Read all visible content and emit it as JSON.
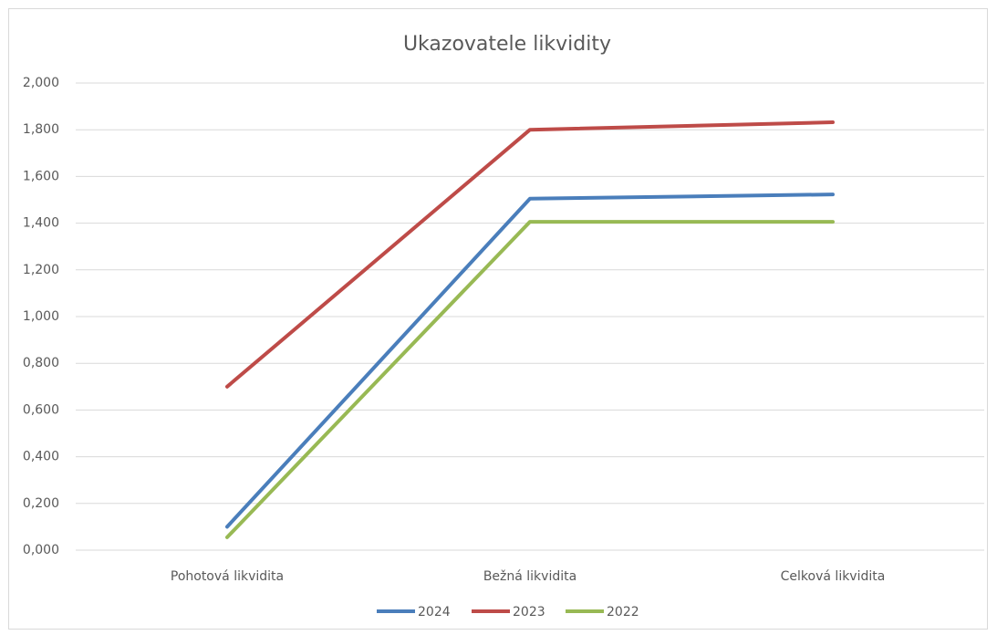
{
  "chart_data": {
    "type": "line",
    "title": "Ukazovatele likvidity",
    "categories": [
      "Pohotová likvidita",
      "Bežná likvidita",
      "Celková likvidita"
    ],
    "series": [
      {
        "name": "2024",
        "color": "#4a7ebb",
        "values": [
          0.1,
          1.505,
          1.523
        ]
      },
      {
        "name": "2023",
        "color": "#be4b48",
        "values": [
          0.7,
          1.8,
          1.832
        ]
      },
      {
        "name": "2022",
        "color": "#98b954",
        "values": [
          0.055,
          1.406,
          1.406
        ]
      }
    ],
    "ylim": [
      0,
      2
    ],
    "yticks": [
      {
        "value": 0,
        "label": "0,000"
      },
      {
        "value": 0.2,
        "label": "0,200"
      },
      {
        "value": 0.4,
        "label": "0,400"
      },
      {
        "value": 0.6,
        "label": "0,600"
      },
      {
        "value": 0.8,
        "label": "0,800"
      },
      {
        "value": 1,
        "label": "1,000"
      },
      {
        "value": 1.2,
        "label": "1,200"
      },
      {
        "value": 1.4,
        "label": "1,400"
      },
      {
        "value": 1.6,
        "label": "1,600"
      },
      {
        "value": 1.8,
        "label": "1,800"
      },
      {
        "value": 2,
        "label": "2,000"
      }
    ],
    "grid": true,
    "legend": "bottom"
  }
}
